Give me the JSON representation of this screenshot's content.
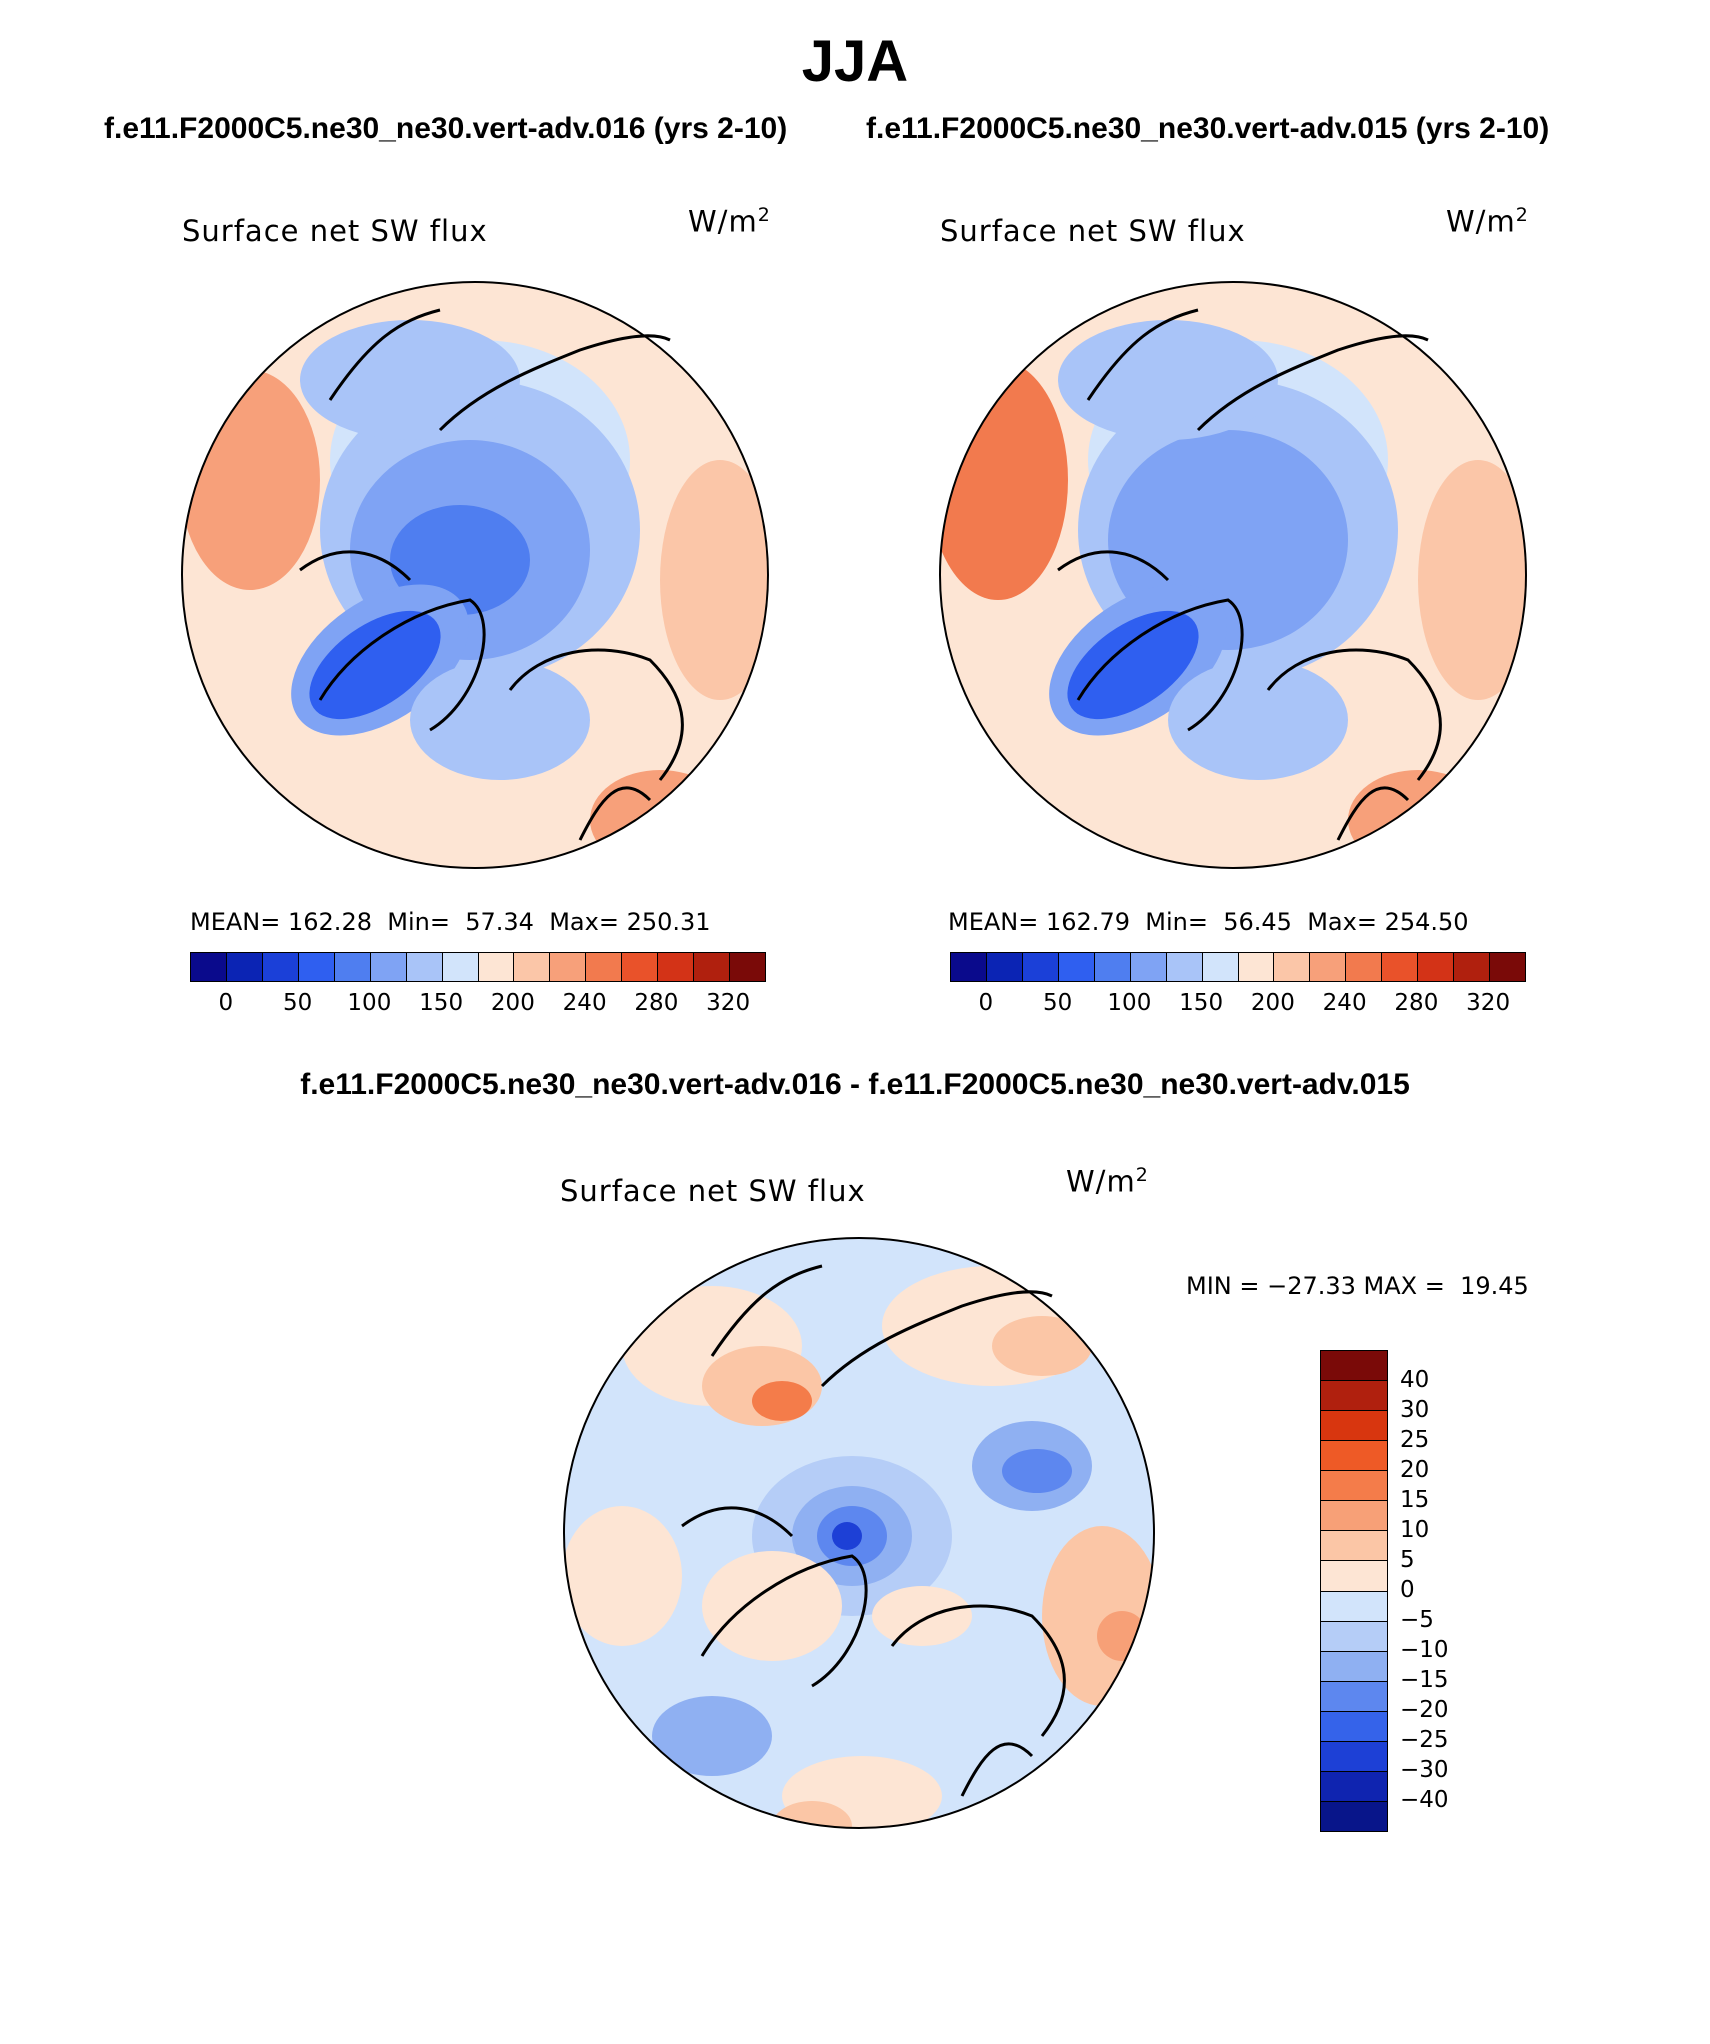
{
  "figure": {
    "season": "JJA",
    "case1_title": "f.e11.F2000C5.ne30_ne30.vert-adv.016 (yrs 2-10)",
    "case2_title": "f.e11.F2000C5.ne30_ne30.vert-adv.015 (yrs 2-10)",
    "diff_title": "f.e11.F2000C5.ne30_ne30.vert-adv.016 - f.e11.F2000C5.ne30_ne30.vert-adv.015"
  },
  "chart_data": [
    {
      "type": "heatmap",
      "projection": "north-polar-stereographic",
      "title": "Surface net SW flux",
      "units_base": "W/m",
      "units_exp": "2",
      "stats": {
        "mean_label": "MEAN=",
        "mean": "162.28",
        "min_label": "Min=",
        "min": "57.34",
        "max_label": "Max=",
        "max": "250.31"
      },
      "colorbar_ticks": [
        "0",
        "50",
        "100",
        "150",
        "200",
        "240",
        "280",
        "320"
      ],
      "colorbar_colors": [
        "#0a0a8c",
        "#0b24b4",
        "#1b40d8",
        "#2f5ff0",
        "#4f7ef0",
        "#7fa3f4",
        "#a9c4f8",
        "#d2e4fb",
        "#fde5d4",
        "#fbc6a8",
        "#f7a07a",
        "#f27a4e",
        "#e9522a",
        "#d33317",
        "#b0200e",
        "#7a0a08"
      ]
    },
    {
      "type": "heatmap",
      "projection": "north-polar-stereographic",
      "title": "Surface net SW flux",
      "units_base": "W/m",
      "units_exp": "2",
      "stats": {
        "mean_label": "MEAN=",
        "mean": "162.79",
        "min_label": "Min=",
        "min": "56.45",
        "max_label": "Max=",
        "max": "254.50"
      },
      "colorbar_ticks": [
        "0",
        "50",
        "100",
        "150",
        "200",
        "240",
        "280",
        "320"
      ],
      "colorbar_colors": [
        "#0a0a8c",
        "#0b24b4",
        "#1b40d8",
        "#2f5ff0",
        "#4f7ef0",
        "#7fa3f4",
        "#a9c4f8",
        "#d2e4fb",
        "#fde5d4",
        "#fbc6a8",
        "#f7a07a",
        "#f27a4e",
        "#e9522a",
        "#d33317",
        "#b0200e",
        "#7a0a08"
      ]
    },
    {
      "type": "heatmap",
      "projection": "north-polar-stereographic",
      "title": "Surface net SW flux",
      "units_base": "W/m",
      "units_exp": "2",
      "minmax_text": "MIN = −27.33 MAX =  19.45",
      "colorbar_ticks": [
        "40",
        "30",
        "25",
        "20",
        "15",
        "10",
        "5",
        "0",
        "−5",
        "−10",
        "−15",
        "−20",
        "−25",
        "−30",
        "−40"
      ],
      "colorbar_colors": [
        "#7a0a08",
        "#b0200e",
        "#d8360f",
        "#ee5a26",
        "#f47c4a",
        "#f7a077",
        "#fbc6a6",
        "#fde5d4",
        "#d2e4fb",
        "#b5cdf7",
        "#8fb0f2",
        "#5d87ef",
        "#3563ea",
        "#1d40d6",
        "#0f24b0",
        "#08158a"
      ]
    }
  ]
}
